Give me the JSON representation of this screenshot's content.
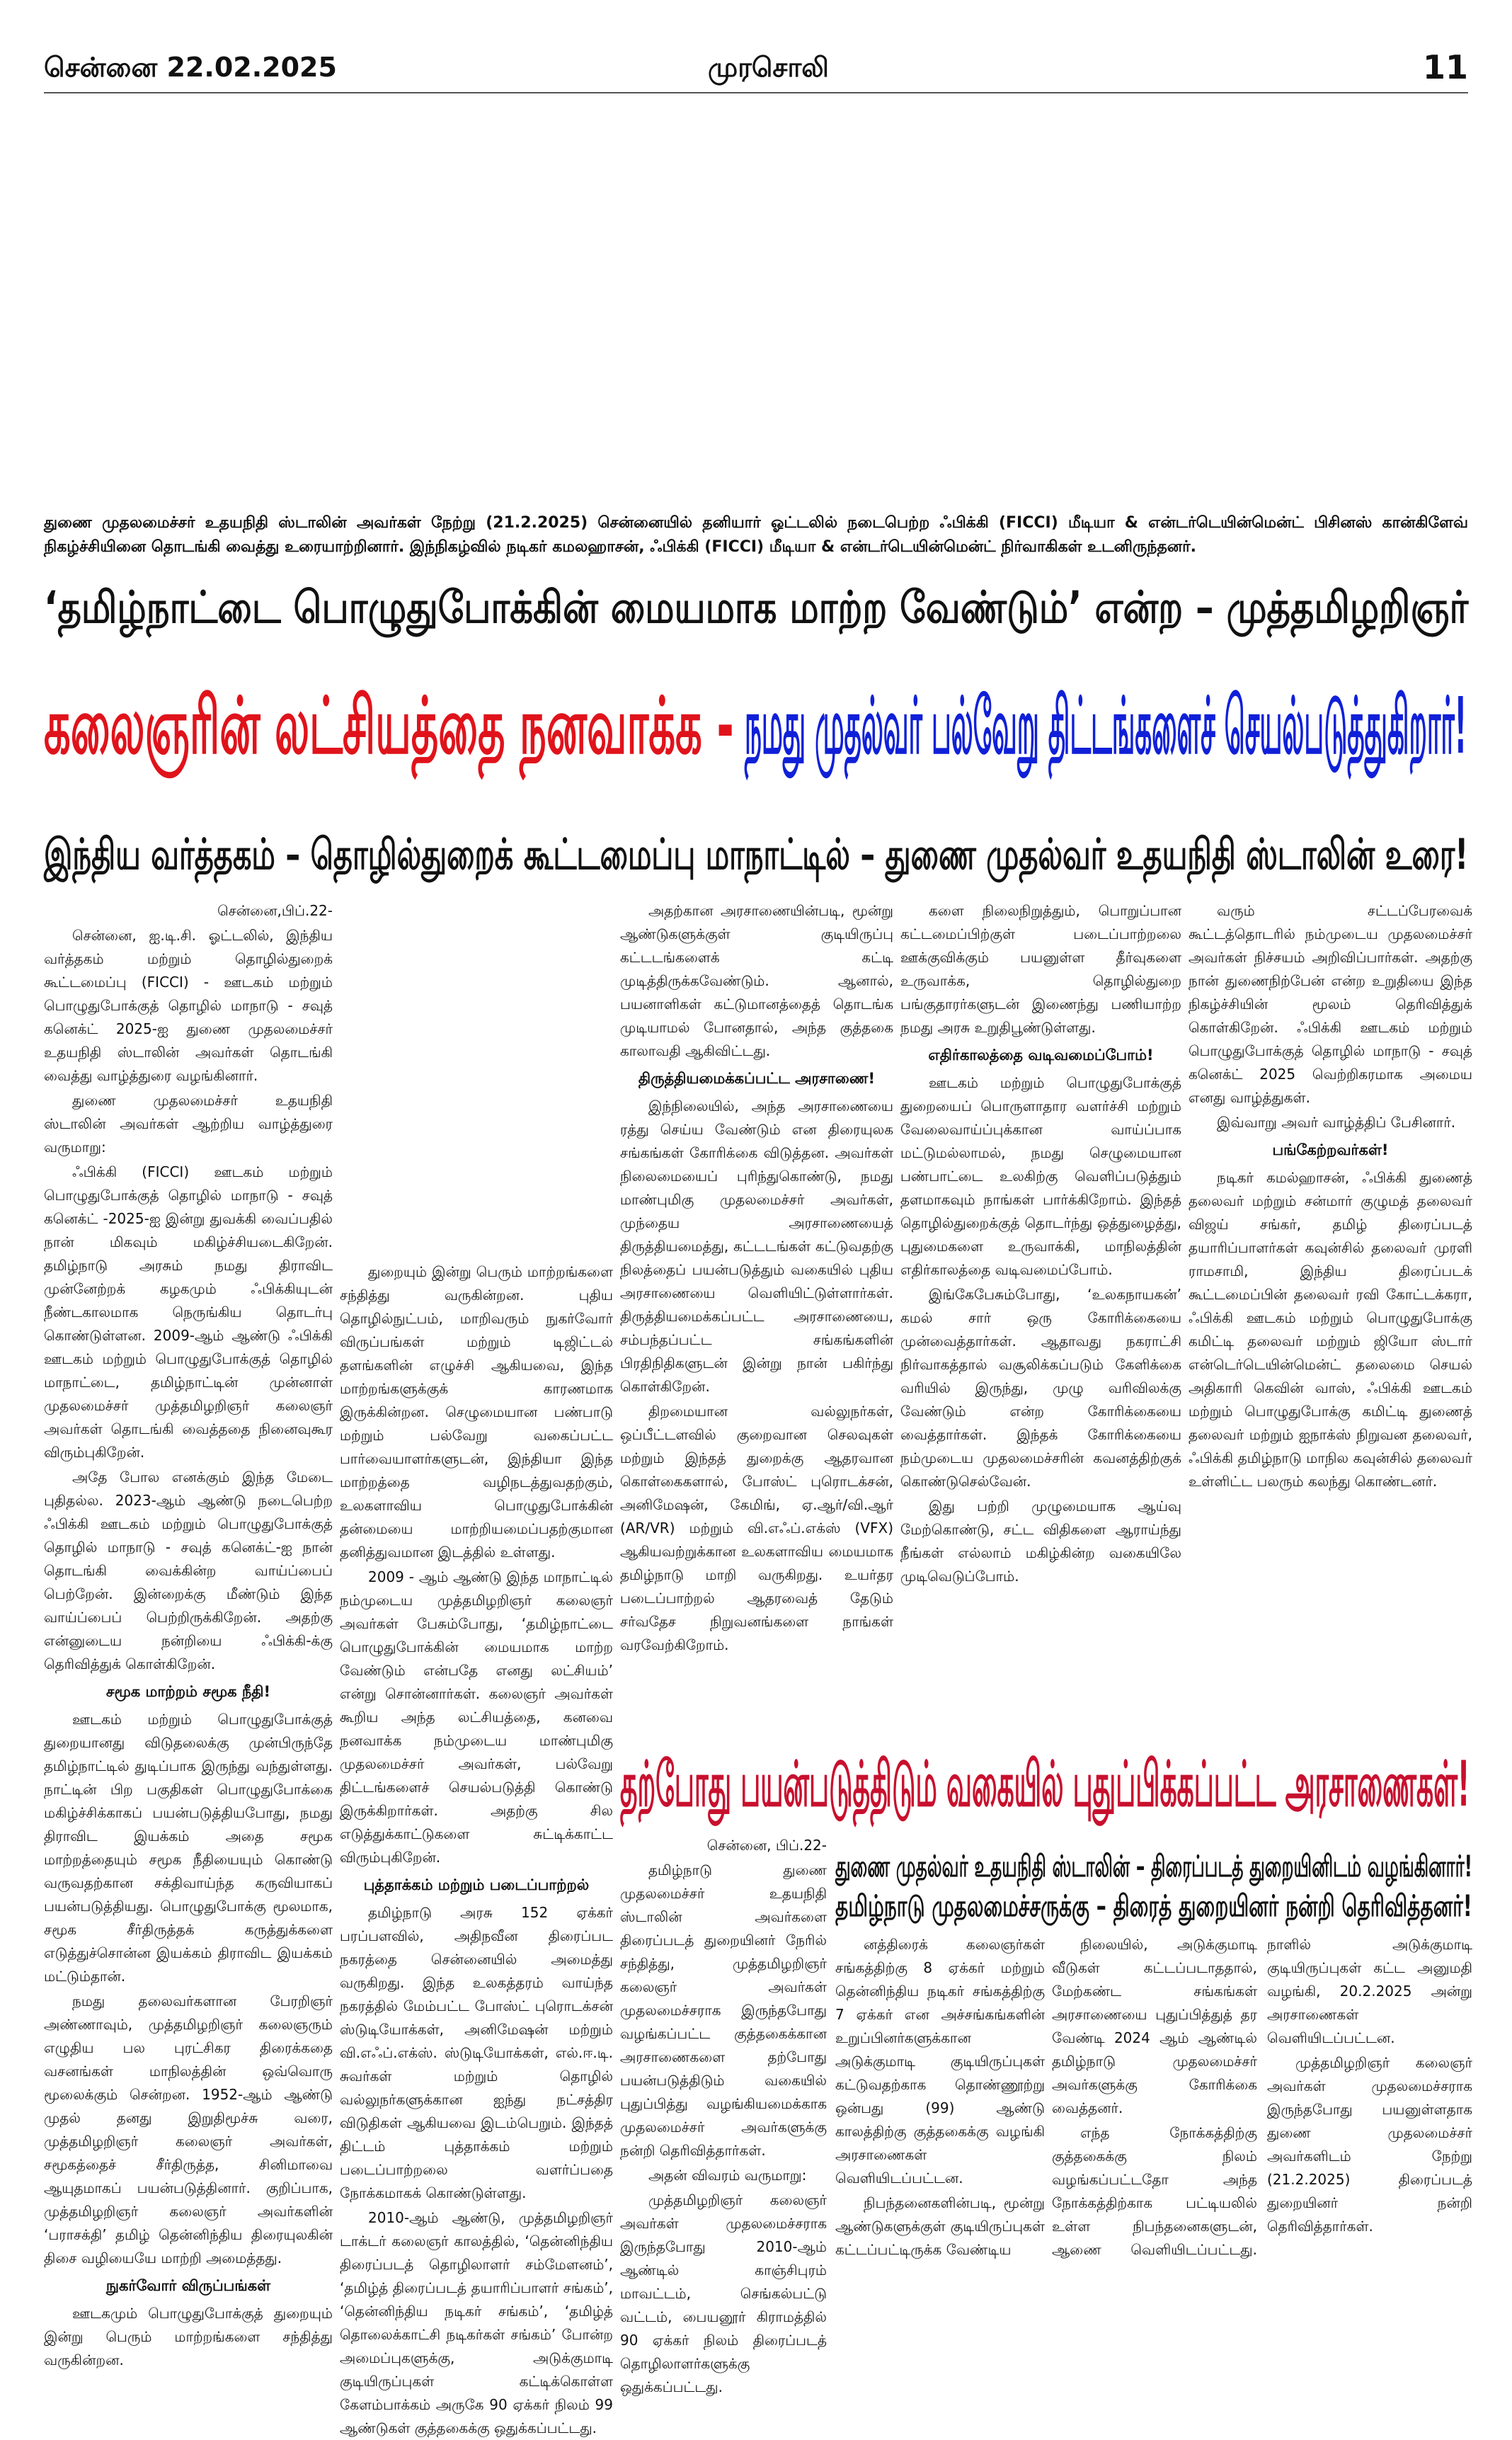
{
  "header": {
    "date": "சென்னை 22.02.2025",
    "paper": "முரசொலி",
    "page": "11"
  },
  "caption": "துணை முதலமைச்சர் உதயநிதி ஸ்டாலின் அவர்கள் நேற்று (21.2.2025) சென்னையில் தனியார் ஓட்டலில் நடைபெற்ற ஃபிக்கி (FICCI) மீடியா & என்டர்டெயின்மென்ட் பிசினஸ் கான்கிளேவ் நிகழ்ச்சியினை தொடங்கி வைத்து உரையாற்றினார். இந்நிகழ்வில் நடிகர் கமலஹாசன், ஃபிக்கி (FICCI) மீடியா & என்டர்டெயின்மென்ட் நிர்வாகிகள் உடனிருந்தனர்.",
  "article1": {
    "kicker": "‘தமிழ்நாட்டை பொழுதுபோக்கின் மையமாக மாற்ற வேண்டும்’ என்ற – முத்தமிழறிஞர்",
    "headline_red": "கலைஞரின் லட்சியத்தை நனவாக்க -",
    "headline_blue": "நமது முதல்வர் பல்வேறு திட்டங்களைச் செயல்படுத்துகிறார்!",
    "subheadline": "இந்திய வர்த்தகம் – தொழில்துறைக் கூட்டமைப்பு மாநாட்டில் – துணை முதல்வர் உதயநிதி ஸ்டாலின் உரை!",
    "columns": [
      [
        "சென்னை,பிப்.22-",
        "சென்னை, ஐ.டி.சி. ஓட்டலில், இந்திய வர்த்தகம் மற்றும் தொழில்துறைக் கூட்டமைப்பு (FICCI) - ஊடகம் மற்றும் பொழுதுபோக்குத் தொழில் மாநாடு - சவுத் கனெக்ட் 2025-ஐ துணை முதலமைச்சர் உதயநிதி ஸ்டாலின் அவர்கள் தொடங்கி வைத்து வாழ்த்துரை வழங்கினார்.",
        "துணை முதலமைச்சர் உதயநிதி ஸ்டாலின் அவர்கள் ஆற்றிய வாழ்த்துரை வருமாறு:",
        "ஃபிக்கி (FICCI) ஊடகம் மற்றும் பொழுதுபோக்குத் தொழில் மாநாடு - சவுத் கனெக்ட் -2025-ஐ இன்று துவக்கி வைப்பதில் நான் மிகவும் மகிழ்ச்சியடைகிறேன். தமிழ்நாடு அரசும் நமது திராவிட முன்னேற்றக் கழகமும் ஃபிக்கியுடன் நீண்டகாலமாக நெருங்கிய தொடர்பு கொண்டுள்ளன. 2009-ஆம் ஆண்டு ஃபிக்கி ஊடகம் மற்றும் பொழுதுபோக்குத் தொழில் மாநாட்டை, தமிழ்நாட்டின் முன்னாள் முதலமைச்சர் முத்தமிழறிஞர் கலைஞர் அவர்கள் தொடங்கி வைத்ததை நினைவுகூர விரும்புகிறேன்.",
        "அதே போல எனக்கும் இந்த மேடை புதிதல்ல. 2023-ஆம் ஆண்டு நடைபெற்ற ஃபிக்கி ஊடகம் மற்றும் பொழுதுபோக்குத் தொழில் மாநாடு - சவுத் கனெக்ட்-ஐ நான் தொடங்கி வைக்கின்ற வாய்ப்பைப் பெற்றேன். இன்றைக்கு மீண்டும் இந்த வாய்ப்பைப் பெற்றிருக்கிறேன். அதற்கு என்னுடைய நன்றியை ஃபிக்கி-க்கு தெரிவித்துக் கொள்கிறேன்.",
        {
          "heading": "சமூக மாற்றம் சமூக நீதி!"
        },
        "ஊடகம் மற்றும் பொழுதுபோக்குத் துறையானது விடுதலைக்கு முன்பிருந்தே தமிழ்நாட்டில் துடிப்பாக இருந்து வந்துள்ளது. நாட்டின் பிற பகுதிகள் பொழுதுபோக்கை மகிழ்ச்சிக்காகப் பயன்படுத்தியபோது, நமது திராவிட இயக்கம் அதை சமூக மாற்றத்தையும் சமூக நீதியையும் கொண்டு வருவதற்கான சக்திவாய்ந்த கருவியாகப் பயன்படுத்தியது. பொழுதுபோக்கு மூலமாக, சமூக சீர்திருத்தக் கருத்துக்களை எடுத்துச்சொன்ன இயக்கம் திராவிட இயக்கம் மட்டும்தான்.",
        "நமது தலைவர்களான பேரறிஞர் அண்ணாவும், முத்தமிழறிஞர் கலைஞரும் எழுதிய பல புரட்சிகர திரைக்கதை வசனங்கள் மாநிலத்தின் ஒவ்வொரு மூலைக்கும் சென்றன. 1952-ஆம் ஆண்டு முதல் தனது இறுதிமூச்சு வரை, முத்தமிழறிஞர் கலைஞர் அவர்கள், சமூகத்தைச் சீர்திருத்த, சினிமாவை ஆயுதமாகப் பயன்படுத்தினார். குறிப்பாக, முத்தமிழறிஞர் கலைஞர் அவர்களின் ‘பராசக்தி’ தமிழ் தென்னிந்திய திரையுலகின் திசை வழியையே மாற்றி அமைத்தது.",
        {
          "heading": "நுகர்வோர் விருப்பங்கள்"
        },
        "ஊடகமும் பொழுதுபோக்குத் துறையும் இன்று பெரும் மாற்றங்களை சந்தித்து வருகின்றன."
      ],
      [
        "துறையும் இன்று பெரும் மாற்றங்களை சந்தித்து வருகின்றன. புதிய தொழில்நுட்பம், மாறிவரும் நுகர்வோர் விருப்பங்கள் மற்றும் டிஜிட்டல் தளங்களின் எழுச்சி ஆகியவை, இந்த மாற்றங்களுக்குக் காரணமாக இருக்கின்றன. செழுமையான பண்பாடு மற்றும் பல்வேறு வகைப்பட்ட பார்வையாளர்களுடன், இந்தியா இந்த மாற்றத்தை வழிநடத்துவதற்கும், உலகளாவிய பொழுதுபோக்கின் தன்மையை மாற்றியமைப்பதற்குமான தனித்துவமான இடத்தில் உள்ளது.",
        "2009 - ஆம் ஆண்டு இந்த மாநாட்டில் நம்முடைய முத்தமிழறிஞர் கலைஞர் அவர்கள் பேசும்போது, ‘தமிழ்நாட்டை பொழுதுபோக்கின் மையமாக மாற்ற வேண்டும் என்பதே எனது லட்சியம்’ என்று சொன்னார்கள். கலைஞர் அவர்கள் கூறிய அந்த லட்சியத்தை, கனவை நனவாக்க நம்முடைய மாண்புமிகு முதலமைச்சர் அவர்கள், பல்வேறு திட்டங்களைச் செயல்படுத்தி கொண்டு இருக்கிறார்கள். அதற்கு சில எடுத்துக்காட்டுகளை சுட்டிக்காட்ட விரும்புகிறேன்.",
        {
          "heading": "புத்தாக்கம் மற்றும் படைப்பாற்றல்"
        },
        "தமிழ்நாடு அரசு 152 ஏக்கர் பரப்பளவில், அதிநவீன திரைப்பட நகரத்தை சென்னையில் அமைத்து வருகிறது. இந்த உலகத்தரம் வாய்ந்த நகரத்தில் மேம்பட்ட போஸ்ட் புரொடக்சன் ஸ்டுடியோக்கள், அனிமேஷன் மற்றும் வி.எஃப்.எக்ஸ். ஸ்டுடியோக்கள், எல்.ஈ.டி. சுவர்கள் மற்றும் தொழில் வல்லுநர்களுக்கான ஐந்து நட்சத்திர விடுதிகள் ஆகியவை இடம்பெறும். இந்தத் திட்டம் புத்தாக்கம் மற்றும் படைப்பாற்றலை வளர்ப்பதை நோக்கமாகக் கொண்டுள்ளது.",
        "2010-ஆம் ஆண்டு, முத்தமிழறிஞர் டாக்டர் கலைஞர் காலத்தில், ‘தென்னிந்திய திரைப்படத் தொழிலாளர் சம்மேளனம்’, ‘தமிழ்த் திரைப்படத் தயாரிப்பாளர் சங்கம்’, ‘தென்னிந்திய நடிகர் சங்கம்’, ‘தமிழ்த் தொலைக்காட்சி நடிகர்கள் சங்கம்’ போன்ற அமைப்புகளுக்கு, அடுக்குமாடி குடியிருப்புகள் கட்டிக்கொள்ள கேளம்பாக்கம் அருகே 90 ஏக்கர் நிலம் 99 ஆண்டுகள் குத்தகைக்கு ஒதுக்கப்பட்டது."
      ],
      [
        "அதற்கான அரசாணையின்படி, மூன்று ஆண்டுகளுக்குள் குடியிருப்பு கட்டடங்களைக் கட்டி முடித்திருக்கவேண்டும். ஆனால், பயனாளிகள் கட்டுமானத்தைத் தொடங்க முடியாமல் போனதால், அந்த குத்தகை காலாவதி ஆகிவிட்டது.",
        {
          "heading": "திருத்தியமைக்கப்பட்ட அரசாணை!"
        },
        "இந்நிலையில், அந்த அரசாணையை ரத்து செய்ய வேண்டும் என திரையுலக சங்கங்கள் கோரிக்கை விடுத்தன. அவர்கள் நிலைமையைப் புரிந்துகொண்டு, நமது மாண்புமிகு முதலமைச்சர் அவர்கள், முந்தைய அரசாணையைத் திருத்தியமைத்து, கட்டடங்கள் கட்டுவதற்கு நிலத்தைப் பயன்படுத்தும் வகையில் புதிய அரசாணையை வெளியிட்டுள்ளார்கள். திருத்தியமைக்கப்பட்ட அரசாணையை, சம்பந்தப்பட்ட சங்கங்களின் பிரதிநிதிகளுடன் இன்று நான் பகிர்ந்து கொள்கிறேன்.",
        "திறமையான வல்லுநர்கள், ஒப்பீட்டளவில் குறைவான செலவுகள் மற்றும் இந்தத் துறைக்கு ஆதரவான கொள்கைகளால், போஸ்ட் புரொடக்சன், அனிமேஷன், கேமிங், ஏ.ஆர்/வி.ஆர் (AR/VR) மற்றும் வி.எஃப்.எக்ஸ் (VFX) ஆகியவற்றுக்கான உலகளாவிய மையமாக தமிழ்நாடு மாறி வருகிறது. உயர்தர படைப்பாற்றல் ஆதரவைத் தேடும் சர்வதேச நிறுவனங்களை நாங்கள் வரவேற்கிறோம்."
      ],
      [
        "களை நிலைநிறுத்தும், பொறுப்பான கட்டமைப்பிற்குள் படைப்பாற்றலை ஊக்குவிக்கும் பயனுள்ள தீர்வுகளை உருவாக்க, தொழில்துறை பங்குதாரர்களுடன் இணைந்து பணியாற்ற நமது அரசு உறுதிபூண்டுள்ளது.",
        {
          "heading": "எதிர்காலத்தை வடிவமைப்போம்!"
        },
        "ஊடகம் மற்றும் பொழுதுபோக்குத் துறையைப் பொருளாதார வளர்ச்சி மற்றும் வேலைவாய்ப்புக்கான வாய்ப்பாக மட்டுமல்லாமல், நமது செழுமையான பண்பாட்டை உலகிற்கு வெளிப்படுத்தும் தளமாகவும் நாங்கள் பார்க்கிறோம். இந்தத் தொழில்துறைக்குத் தொடர்ந்து ஒத்துழைத்து, புதுமைகளை உருவாக்கி, மாநிலத்தின் எதிர்காலத்தை வடிவமைப்போம்.",
        "இங்கேபேசும்போது, ‘உலகநாயகன்’ கமல் சார் ஒரு கோரிக்கையை முன்வைத்தார்கள். ஆதாவது நகராட்சி நிர்வாகத்தால் வசூலிக்கப்படும் கேளிக்கை வரியில் இருந்து, முழு வரிவிலக்கு வேண்டும் என்ற கோரிக்கையை வைத்தார்கள். இந்தக் கோரிக்கையை நம்முடைய முதலமைச்சரின் கவனத்திற்குக் கொண்டுசெல்வேன்.",
        "இது பற்றி முழுமையாக ஆய்வு மேற்கொண்டு, சட்ட விதிகளை ஆராய்ந்து நீங்கள் எல்லாம் மகிழ்கின்ற வகையிலே முடிவெடுப்போம்."
      ],
      [
        "வரும் சட்டப்பேரவைக் கூட்டத்தொடரில் நம்முடைய முதலமைச்சர் அவர்கள் நிச்சயம் அறிவிப்பார்கள். அதற்கு நான் துணைநிற்பேன் என்ற உறுதியை இந்த நிகழ்ச்சியின் மூலம் தெரிவித்துக் கொள்கிறேன். ஃபிக்கி ஊடகம் மற்றும் பொழுதுபோக்குத் தொழில் மாநாடு - சவுத் கனெக்ட் 2025 வெற்றிகரமாக அமைய எனது வாழ்த்துகள்.",
        "இவ்வாறு அவர் வாழ்த்திப் பேசினார்.",
        {
          "heading": "பங்கேற்றவர்கள்!"
        },
        "நடிகர் கமல்ஹாசன், ஃபிக்கி துணைத் தலைவர் மற்றும் சன்மார் குழுமத் தலைவர் விஜய் சங்கர், தமிழ் திரைப்படத் தயாரிப்பாளர்கள் கவுன்சில் தலைவர் முரளி ராமசாமி, இந்திய திரைப்படக் கூட்டமைப்பின் தலைவர் ரவி கோட்டக்கரா, ஃபிக்கி ஊடகம் மற்றும் பொழுதுபோக்கு கமிட்டி தலைவர் மற்றும் ஜியோ ஸ்டார் என்டெர்டெயின்மென்ட் தலைமை செயல் அதிகாரி கெவின் வாஸ், ஃபிக்கி ஊடகம் மற்றும் பொழுதுபோக்கு கமிட்டி துணைத் தலைவர் மற்றும் ஐநாக்ஸ் நிறுவன தலைவர், ஃபிக்கி தமிழ்நாடு மாநில கவுன்சில் தலைவர் உள்ளிட்ட பலரும் கலந்து கொண்டனர்."
      ]
    ]
  },
  "article2": {
    "headline": "தற்போது பயன்படுத்திடும் வகையில் புதுப்பிக்கப்பட்ட அரசாணைகள்!",
    "subheadline": [
      "துணை முதல்வர் உதயநிதி ஸ்டாலின் – திரைப்படத் துறையினிடம் வழங்கினார்!",
      "தமிழ்நாடு முதலமைச்சருக்கு – திரைத் துறையினர் நன்றி தெரிவித்தனர்!"
    ],
    "columns": [
      [
        "சென்னை, பிப்.22-",
        "தமிழ்நாடு துணை முதலமைச்சர் உதயநிதி ஸ்டாலின் அவர்களை திரைப்படத் துறையினர் நேரில் சந்தித்து, முத்தமிழறிஞர் கலைஞர் அவர்கள் முதலமைச்சராக இருந்தபோது வழங்கப்பட்ட குத்தகைக்கான அரசாணைகளை தற்போது பயன்படுத்திடும் வகையில் புதுப்பித்து வழங்கியமைக்காக முதலமைச்சர் அவர்களுக்கு நன்றி தெரிவித்தார்கள்.",
        "அதன் விவரம் வருமாறு:",
        "முத்தமிழறிஞர் கலைஞர் அவர்கள் முதலமைச்சராக இருந்தபோது 2010-ஆம் ஆண்டில் காஞ்சிபுரம் மாவட்டம், செங்கல்பட்டு வட்டம், பையனூர் கிராமத்தில் 90 ஏக்கர் நிலம் திரைப்படத் தொழிலாளர்களுக்கு ஒதுக்கப்பட்டது."
      ],
      [
        "னத்திரைக் கலைஞர்கள் சங்கத்திற்கு 8 ஏக்கர் மற்றும் தென்னிந்திய நடிகர் சங்கத்திற்கு 7 ஏக்கர் என அச்சங்கங்களின் உறுப்பினர்களுக்கான அடுக்குமாடி குடியிருப்புகள் கட்டுவதற்காக தொண்ணூற்று ஒன்பது (99) ஆண்டு காலத்திற்கு குத்தகைக்கு வழங்கி அரசாணைகள் வெளியிடப்பட்டன.",
        "நிபந்தனைகளின்படி, மூன்று ஆண்டுகளுக்குள் குடியிருப்புகள் கட்டப்பட்டிருக்க வேண்டிய"
      ],
      [
        "நிலையில், அடுக்குமாடி வீடுகள் கட்டப்படாததால், மேற்கண்ட சங்கங்கள் அரசாணையை புதுப்பித்துத் தர வேண்டி 2024 ஆம் ஆண்டில் தமிழ்நாடு முதலமைச்சர் அவர்களுக்கு கோரிக்கை வைத்தனர்.",
        "எந்த நோக்கத்திற்கு குத்தகைக்கு நிலம் வழங்கப்பட்டதோ அந்த நோக்கத்திற்காக பட்டியலில் உள்ள நிபந்தனைகளுடன், ஆணை வெளியிடப்பட்டது. நாளில் அடுக்குமாடி குடியிருப்புகள் கட்ட அனுமதி வழங்கி, 20.2.2025 அன்று அரசாணைகள் வெளியிடப்பட்டன.",
        "முத்தமிழறிஞர் கலைஞர் அவர்கள் முதலமைச்சராக இருந்தபோது பயனுள்ளதாக துணை முதலமைச்சர் அவர்களிடம் நேற்று (21.2.2025) திரைப்படத் துறையினர் நன்றி தெரிவித்தார்கள்."
      ]
    ]
  }
}
